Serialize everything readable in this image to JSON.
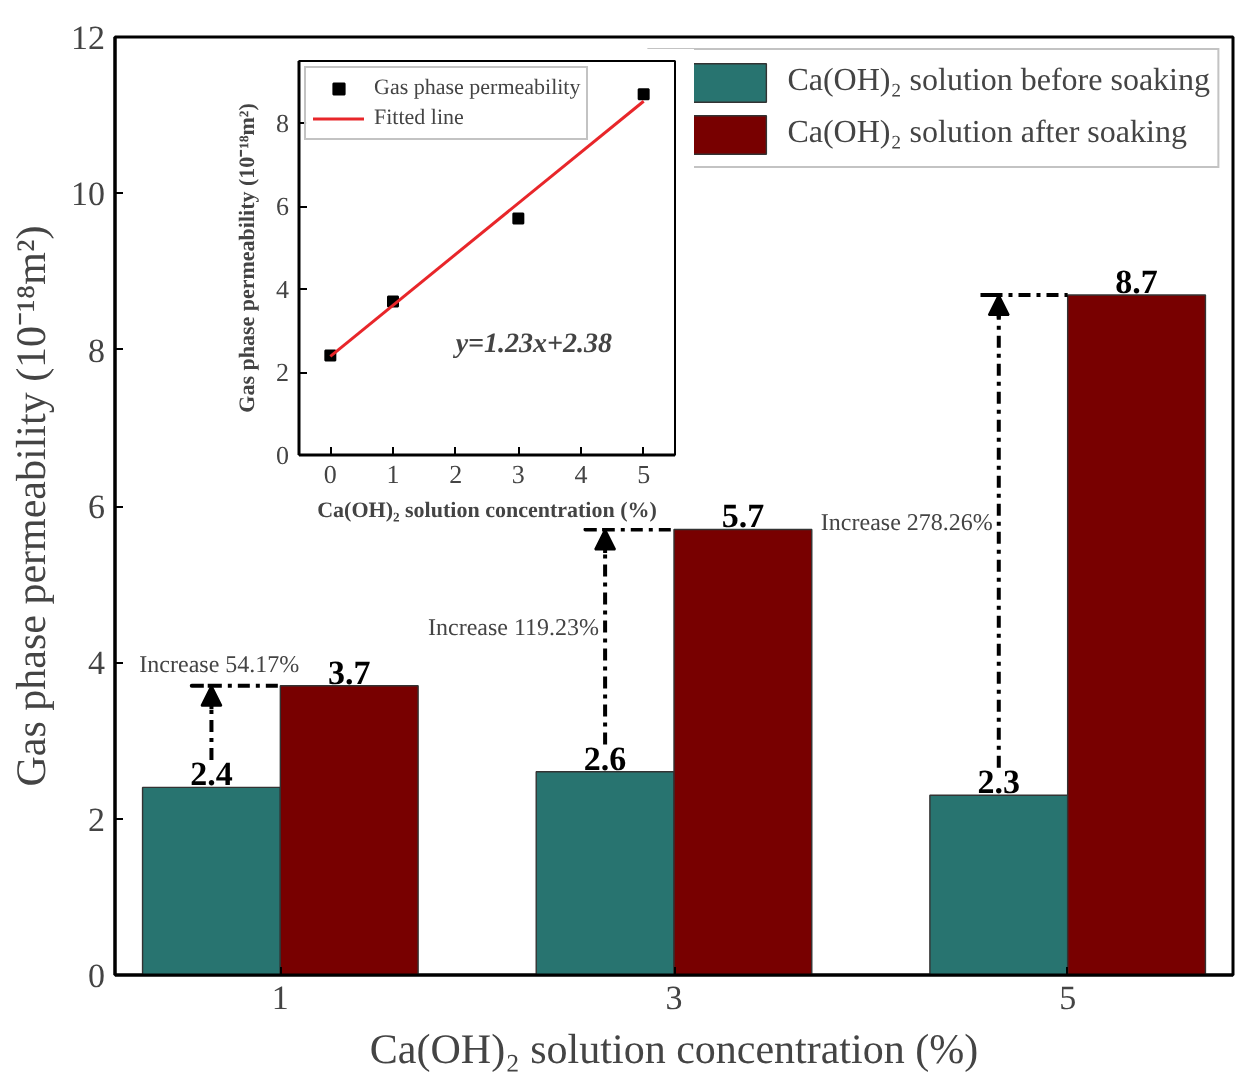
{
  "chart_data": [
    {
      "type": "bar",
      "xlabel": "Ca(OH)₂ solution concentration (%)",
      "ylabel": "Gas phase permeability (10⁻¹⁸m²)",
      "categories": [
        "1",
        "3",
        "5"
      ],
      "series": [
        {
          "name": "Ca(OH)₂ solution before soaking",
          "color": "#287470",
          "values": [
            2.4,
            2.6,
            2.3
          ]
        },
        {
          "name": "Ca(OH)₂ solution after soaking",
          "color": "#780000",
          "values": [
            3.7,
            5.7,
            8.7
          ]
        }
      ],
      "ylim": [
        0,
        12
      ],
      "yticks": [
        0,
        2,
        4,
        6,
        8,
        10,
        12
      ],
      "data_labels": true,
      "legend": "top right",
      "grid": false,
      "annotations": [
        "Increase 54.17%",
        "Increase 119.23%",
        "Increase 278.26%"
      ]
    },
    {
      "type": "scatter",
      "xlabel": "Ca(OH)₂ solution concentration (%)",
      "ylabel": "Gas phase permeability (10⁻¹⁸m²)",
      "series": [
        {
          "name": "Gas phase permeability",
          "color": "#000000",
          "x": [
            0,
            1,
            3,
            5
          ],
          "values": [
            2.4,
            3.7,
            5.7,
            8.7
          ],
          "marker": "square"
        },
        {
          "name": "Fitted line",
          "type": "line",
          "color": "#e8262a",
          "x": [
            0,
            5
          ],
          "values": [
            2.38,
            8.53
          ]
        }
      ],
      "xlim": [
        -0.5,
        5.5
      ],
      "xticks": [
        0,
        1,
        2,
        3,
        4,
        5
      ],
      "ylim": [
        0,
        9.5
      ],
      "yticks": [
        0,
        2,
        4,
        6,
        8
      ],
      "legend": "top left",
      "grid": false,
      "annotations": [
        "y=1.23x+2.38"
      ]
    }
  ]
}
